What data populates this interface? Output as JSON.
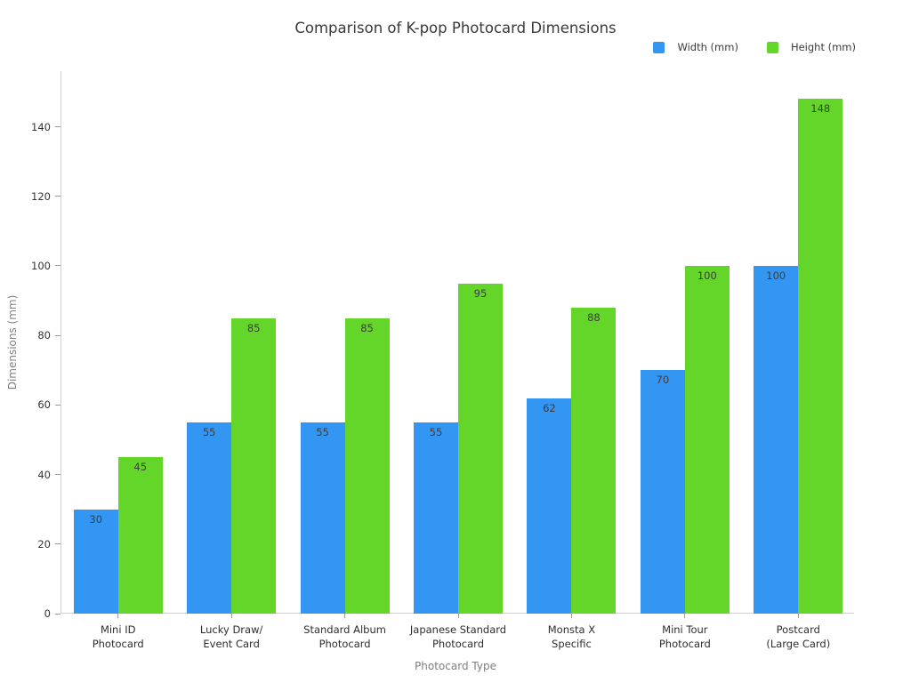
{
  "chart_data": {
    "type": "bar",
    "title": "Comparison of K-pop Photocard Dimensions",
    "xlabel": "Photocard Type",
    "ylabel": "Dimensions (mm)",
    "categories": [
      "Mini ID\nPhotocard",
      "Lucky Draw/\nEvent Card",
      "Standard Album\nPhotocard",
      "Japanese Standard\nPhotocard",
      "Monsta X\nSpecific",
      "Mini Tour\nPhotocard",
      "Postcard\n(Large Card)"
    ],
    "series": [
      {
        "name": "Width (mm)",
        "color": "#3496f3",
        "values": [
          30,
          55,
          55,
          55,
          62,
          70,
          100
        ]
      },
      {
        "name": "Height (mm)",
        "color": "#64d62a",
        "values": [
          45,
          85,
          85,
          95,
          88,
          100,
          148
        ]
      }
    ],
    "yticks": [
      0,
      20,
      40,
      60,
      80,
      100,
      120,
      140
    ],
    "ylim": [
      0,
      156
    ],
    "grid": false,
    "legend_position": "top-right",
    "bar_value_labels": true
  }
}
